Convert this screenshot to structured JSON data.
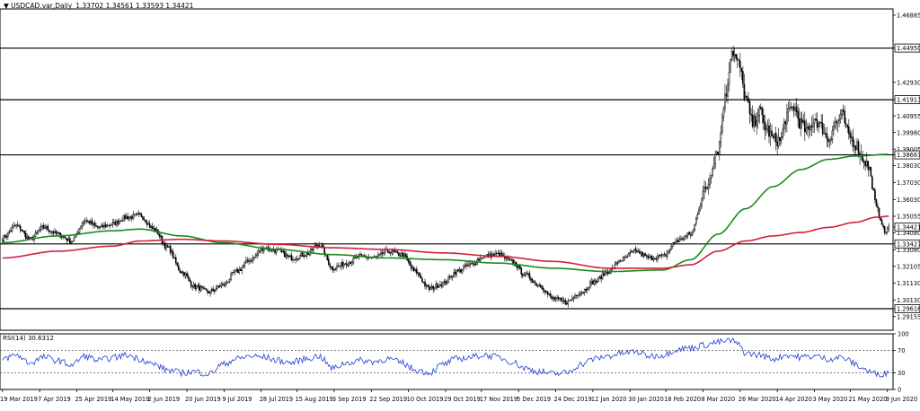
{
  "header": {
    "symbol": "USDCAD.var,Daily",
    "ohlc": "1.33702 1.34561 1.33593 1.34421"
  },
  "chart_data": {
    "type": "candlestick",
    "ylim": [
      1.2835,
      1.4725
    ],
    "y_ticks": [
      1.46885,
      1.4495,
      1.4293,
      1.41913,
      1.40955,
      1.3998,
      1.39005,
      1.38667,
      1.3803,
      1.3703,
      1.3603,
      1.35055,
      1.34421,
      1.3408,
      1.33427,
      1.3308,
      1.32105,
      1.3113,
      1.3013,
      1.29616,
      1.29155
    ],
    "horizontal_levels": [
      {
        "value": 1.4495,
        "label": "1.44950"
      },
      {
        "value": 1.41913,
        "label": "1.41913"
      },
      {
        "value": 1.38667,
        "label": "1.38667"
      },
      {
        "value": 1.33427,
        "label": "1.33427"
      },
      {
        "value": 1.29616,
        "label": "1.29616"
      }
    ],
    "current_price": {
      "value": 1.34421,
      "label": "1.34421"
    },
    "ma_red_label": "1.35055",
    "x_labels": [
      "19 Mar 2019",
      "7 Apr 2019",
      "25 Apr 2019",
      "14 May 2019",
      "2 Jun 2019",
      "20 Jun 2019",
      "9 Jul 2019",
      "28 Jul 2019",
      "15 Aug 2019",
      "3 Sep 2019",
      "22 Sep 2019",
      "10 Oct 2019",
      "29 Oct 2019",
      "17 Nov 2019",
      "5 Dec 2019",
      "24 Dec 2019",
      "12 Jan 2020",
      "30 Jan 2020",
      "18 Feb 2020",
      "8 Mar 2020",
      "26 Mar 2020",
      "14 Apr 2020",
      "3 May 2020",
      "21 May 2020",
      "9 Jun 2020"
    ],
    "close_anchors": [
      [
        0,
        1.338
      ],
      [
        10,
        1.345
      ],
      [
        20,
        1.337
      ],
      [
        30,
        1.344
      ],
      [
        40,
        1.34
      ],
      [
        50,
        1.336
      ],
      [
        60,
        1.348
      ],
      [
        70,
        1.344
      ],
      [
        80,
        1.346
      ],
      [
        90,
        1.35
      ],
      [
        100,
        1.351
      ],
      [
        110,
        1.343
      ],
      [
        120,
        1.332
      ],
      [
        130,
        1.318
      ],
      [
        140,
        1.309
      ],
      [
        150,
        1.306
      ],
      [
        160,
        1.31
      ],
      [
        170,
        1.318
      ],
      [
        180,
        1.325
      ],
      [
        190,
        1.332
      ],
      [
        200,
        1.33
      ],
      [
        210,
        1.326
      ],
      [
        220,
        1.328
      ],
      [
        230,
        1.334
      ],
      [
        240,
        1.32
      ],
      [
        250,
        1.323
      ],
      [
        260,
        1.327
      ],
      [
        270,
        1.326
      ],
      [
        280,
        1.33
      ],
      [
        290,
        1.328
      ],
      [
        300,
        1.318
      ],
      [
        310,
        1.308
      ],
      [
        320,
        1.311
      ],
      [
        330,
        1.318
      ],
      [
        340,
        1.322
      ],
      [
        350,
        1.327
      ],
      [
        360,
        1.328
      ],
      [
        370,
        1.324
      ],
      [
        380,
        1.316
      ],
      [
        390,
        1.31
      ],
      [
        400,
        1.302
      ],
      [
        410,
        1.3
      ],
      [
        420,
        1.306
      ],
      [
        430,
        1.312
      ],
      [
        440,
        1.318
      ],
      [
        450,
        1.325
      ],
      [
        460,
        1.33
      ],
      [
        470,
        1.326
      ],
      [
        480,
        1.327
      ],
      [
        490,
        1.336
      ],
      [
        500,
        1.34
      ],
      [
        510,
        1.365
      ],
      [
        520,
        1.39
      ],
      [
        525,
        1.42
      ],
      [
        530,
        1.448
      ],
      [
        535,
        1.44
      ],
      [
        540,
        1.42
      ],
      [
        545,
        1.405
      ],
      [
        550,
        1.412
      ],
      [
        555,
        1.402
      ],
      [
        560,
        1.396
      ],
      [
        565,
        1.395
      ],
      [
        570,
        1.41
      ],
      [
        575,
        1.415
      ],
      [
        580,
        1.405
      ],
      [
        585,
        1.4
      ],
      [
        590,
        1.408
      ],
      [
        595,
        1.403
      ],
      [
        600,
        1.396
      ],
      [
        605,
        1.405
      ],
      [
        610,
        1.41
      ],
      [
        615,
        1.398
      ],
      [
        620,
        1.393
      ],
      [
        625,
        1.385
      ],
      [
        630,
        1.379
      ],
      [
        632,
        1.368
      ],
      [
        635,
        1.356
      ],
      [
        638,
        1.349
      ],
      [
        641,
        1.341
      ],
      [
        644,
        1.344
      ]
    ],
    "ma_green_anchors": [
      [
        0,
        1.335
      ],
      [
        40,
        1.339
      ],
      [
        80,
        1.342
      ],
      [
        100,
        1.343
      ],
      [
        130,
        1.339
      ],
      [
        160,
        1.335
      ],
      [
        200,
        1.331
      ],
      [
        240,
        1.328
      ],
      [
        280,
        1.326
      ],
      [
        320,
        1.325
      ],
      [
        360,
        1.323
      ],
      [
        400,
        1.32
      ],
      [
        440,
        1.318
      ],
      [
        480,
        1.319
      ],
      [
        500,
        1.325
      ],
      [
        520,
        1.34
      ],
      [
        540,
        1.355
      ],
      [
        560,
        1.368
      ],
      [
        580,
        1.378
      ],
      [
        600,
        1.384
      ],
      [
        620,
        1.386
      ],
      [
        644,
        1.387
      ]
    ],
    "ma_red_anchors": [
      [
        0,
        1.326
      ],
      [
        40,
        1.33
      ],
      [
        80,
        1.333
      ],
      [
        100,
        1.336
      ],
      [
        130,
        1.337
      ],
      [
        160,
        1.336
      ],
      [
        200,
        1.334
      ],
      [
        240,
        1.332
      ],
      [
        280,
        1.331
      ],
      [
        320,
        1.329
      ],
      [
        360,
        1.327
      ],
      [
        400,
        1.324
      ],
      [
        440,
        1.32
      ],
      [
        480,
        1.32
      ],
      [
        500,
        1.322
      ],
      [
        520,
        1.33
      ],
      [
        540,
        1.336
      ],
      [
        560,
        1.339
      ],
      [
        580,
        1.341
      ],
      [
        600,
        1.344
      ],
      [
        620,
        1.347
      ],
      [
        635,
        1.35
      ],
      [
        644,
        1.3506
      ]
    ],
    "rsi": {
      "label": "RSI(14) 30.6312",
      "ylim": [
        0,
        100
      ],
      "ticks": [
        100,
        70,
        30,
        0
      ],
      "levels": [
        70,
        30
      ],
      "anchors": [
        [
          0,
          55
        ],
        [
          10,
          62
        ],
        [
          20,
          48
        ],
        [
          30,
          58
        ],
        [
          40,
          52
        ],
        [
          50,
          44
        ],
        [
          60,
          60
        ],
        [
          70,
          52
        ],
        [
          80,
          57
        ],
        [
          90,
          62
        ],
        [
          100,
          55
        ],
        [
          110,
          45
        ],
        [
          120,
          35
        ],
        [
          130,
          30
        ],
        [
          140,
          32
        ],
        [
          150,
          28
        ],
        [
          160,
          45
        ],
        [
          170,
          55
        ],
        [
          180,
          60
        ],
        [
          190,
          58
        ],
        [
          200,
          52
        ],
        [
          210,
          48
        ],
        [
          220,
          55
        ],
        [
          230,
          60
        ],
        [
          240,
          38
        ],
        [
          250,
          48
        ],
        [
          260,
          52
        ],
        [
          270,
          50
        ],
        [
          280,
          55
        ],
        [
          290,
          48
        ],
        [
          300,
          35
        ],
        [
          310,
          30
        ],
        [
          320,
          45
        ],
        [
          330,
          55
        ],
        [
          340,
          58
        ],
        [
          350,
          62
        ],
        [
          360,
          58
        ],
        [
          370,
          50
        ],
        [
          380,
          38
        ],
        [
          390,
          32
        ],
        [
          400,
          28
        ],
        [
          410,
          30
        ],
        [
          420,
          45
        ],
        [
          430,
          55
        ],
        [
          440,
          60
        ],
        [
          450,
          65
        ],
        [
          460,
          68
        ],
        [
          470,
          60
        ],
        [
          480,
          62
        ],
        [
          490,
          72
        ],
        [
          500,
          75
        ],
        [
          510,
          80
        ],
        [
          520,
          85
        ],
        [
          530,
          88
        ],
        [
          535,
          80
        ],
        [
          540,
          65
        ],
        [
          550,
          62
        ],
        [
          560,
          55
        ],
        [
          570,
          62
        ],
        [
          580,
          58
        ],
        [
          590,
          60
        ],
        [
          600,
          55
        ],
        [
          610,
          58
        ],
        [
          615,
          52
        ],
        [
          620,
          45
        ],
        [
          625,
          38
        ],
        [
          630,
          32
        ],
        [
          635,
          28
        ],
        [
          640,
          28
        ],
        [
          644,
          30.6
        ]
      ]
    }
  }
}
